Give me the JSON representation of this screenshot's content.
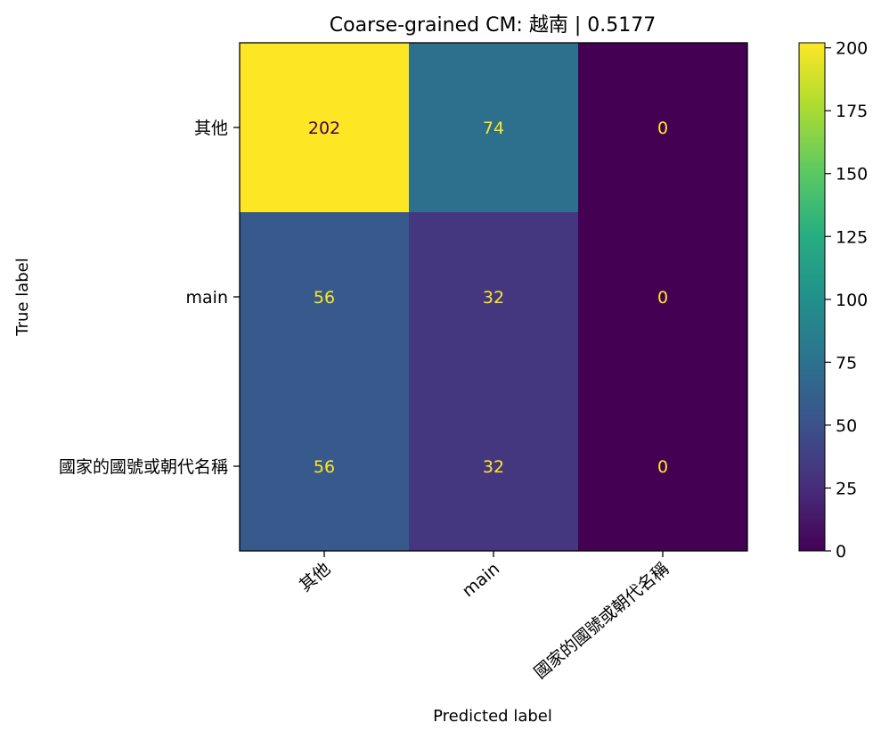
{
  "chart_data": {
    "type": "heatmap",
    "title": "Coarse-grained CM: 越南 | 0.5177",
    "xlabel": "Predicted label",
    "ylabel": "True label",
    "x_categories": [
      "其他",
      "main",
      "國家的國號或朝代名稱"
    ],
    "y_categories": [
      "其他",
      "main",
      "國家的國號或朝代名稱"
    ],
    "matrix": [
      [
        202,
        74,
        0
      ],
      [
        56,
        32,
        0
      ],
      [
        56,
        32,
        0
      ]
    ],
    "colormap": "viridis",
    "vmin": 0,
    "vmax": 202,
    "colorbar_ticks": [
      0,
      25,
      50,
      75,
      100,
      125,
      150,
      175,
      200
    ],
    "cell_text_colors": {
      "dark_cell": "#fde725",
      "light_cell": "#440154"
    }
  }
}
